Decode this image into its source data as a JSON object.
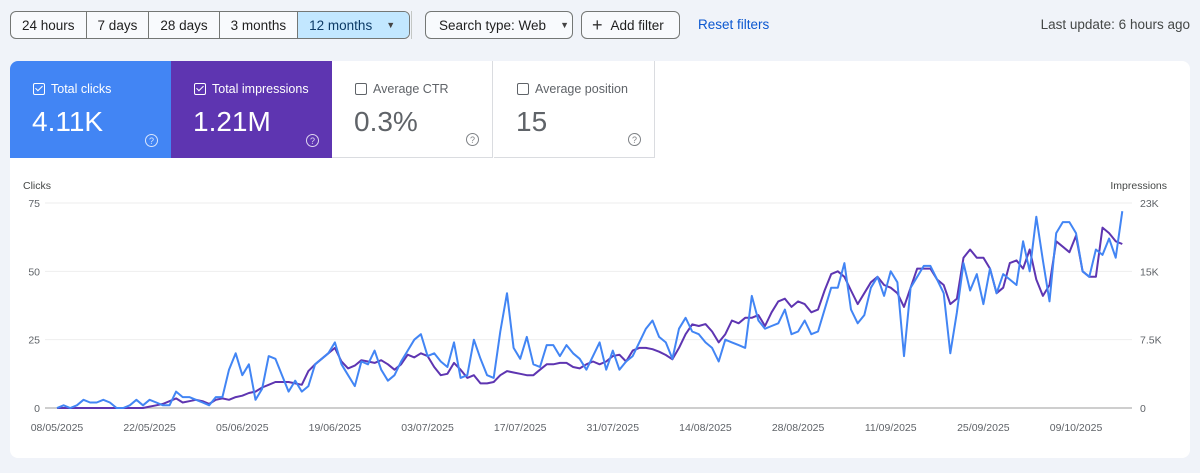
{
  "toolbar": {
    "ranges": [
      "24 hours",
      "7 days",
      "28 days",
      "3 months",
      "12 months"
    ],
    "active_range": "12 months",
    "search_type": "Search type: Web",
    "add_filter": "Add filter",
    "reset_filters": "Reset filters",
    "last_update": "Last update: 6 hours ago",
    "accent_color": "#0b57d0",
    "active_range_bg": "#c2e7ff"
  },
  "metrics": [
    {
      "label": "Total clicks",
      "value": "4.11K",
      "checked": true,
      "color": "#4285f4"
    },
    {
      "label": "Total impressions",
      "value": "1.21M",
      "checked": true,
      "color": "#5e35b1"
    },
    {
      "label": "Average CTR",
      "value": "0.3%",
      "checked": false
    },
    {
      "label": "Average position",
      "value": "15",
      "checked": false
    }
  ],
  "chart_data": {
    "type": "line",
    "left_axis_title": "Clicks",
    "right_axis_title": "Impressions",
    "left_ylim": [
      0,
      75
    ],
    "right_ylim": [
      0,
      22500
    ],
    "left_ticks": [
      "0",
      "25",
      "50",
      "75"
    ],
    "right_ticks": [
      "0",
      "7.5K",
      "15K",
      "23K"
    ],
    "x_tick_labels": [
      "08/05/2025",
      "22/05/2025",
      "05/06/2025",
      "19/06/2025",
      "03/07/2025",
      "17/07/2025",
      "31/07/2025",
      "14/08/2025",
      "28/08/2025",
      "11/09/2025",
      "25/09/2025",
      "09/10/2025"
    ],
    "grid": true,
    "dates": [
      "08/05/2025",
      "09/05/2025",
      "10/05/2025",
      "11/05/2025",
      "12/05/2025",
      "13/05/2025",
      "14/05/2025",
      "15/05/2025",
      "16/05/2025",
      "17/05/2025",
      "18/05/2025",
      "19/05/2025",
      "20/05/2025",
      "21/05/2025",
      "22/05/2025",
      "23/05/2025",
      "24/05/2025",
      "25/05/2025",
      "26/05/2025",
      "27/05/2025",
      "28/05/2025",
      "29/05/2025",
      "30/05/2025",
      "31/05/2025",
      "01/06/2025",
      "02/06/2025",
      "03/06/2025",
      "04/06/2025",
      "05/06/2025",
      "06/06/2025",
      "07/06/2025",
      "08/06/2025",
      "09/06/2025",
      "10/06/2025",
      "11/06/2025",
      "12/06/2025",
      "13/06/2025",
      "14/06/2025",
      "15/06/2025",
      "16/06/2025",
      "17/06/2025",
      "18/06/2025",
      "19/06/2025",
      "20/06/2025",
      "21/06/2025",
      "22/06/2025",
      "23/06/2025",
      "24/06/2025",
      "25/06/2025",
      "26/06/2025",
      "27/06/2025",
      "28/06/2025",
      "29/06/2025",
      "30/06/2025",
      "01/07/2025",
      "02/07/2025",
      "03/07/2025",
      "04/07/2025",
      "05/07/2025",
      "06/07/2025",
      "07/07/2025",
      "08/07/2025",
      "09/07/2025",
      "10/07/2025",
      "11/07/2025",
      "12/07/2025",
      "13/07/2025",
      "14/07/2025",
      "15/07/2025",
      "16/07/2025",
      "17/07/2025",
      "18/07/2025",
      "19/07/2025",
      "20/07/2025",
      "21/07/2025",
      "22/07/2025",
      "23/07/2025",
      "24/07/2025",
      "25/07/2025",
      "26/07/2025",
      "27/07/2025",
      "28/07/2025",
      "29/07/2025",
      "30/07/2025",
      "31/07/2025",
      "01/08/2025",
      "02/08/2025",
      "03/08/2025",
      "04/08/2025",
      "05/08/2025",
      "06/08/2025",
      "07/08/2025",
      "08/08/2025",
      "09/08/2025",
      "10/08/2025",
      "11/08/2025",
      "12/08/2025",
      "13/08/2025",
      "14/08/2025",
      "15/08/2025",
      "16/08/2025",
      "17/08/2025",
      "18/08/2025",
      "19/08/2025",
      "20/08/2025",
      "21/08/2025",
      "22/08/2025",
      "23/08/2025",
      "24/08/2025",
      "25/08/2025",
      "26/08/2025",
      "27/08/2025",
      "28/08/2025",
      "29/08/2025",
      "30/08/2025",
      "31/08/2025",
      "01/09/2025",
      "02/09/2025",
      "03/09/2025",
      "04/09/2025",
      "05/09/2025",
      "06/09/2025",
      "07/09/2025",
      "08/09/2025",
      "09/09/2025",
      "10/09/2025",
      "11/09/2025",
      "12/09/2025",
      "13/09/2025",
      "14/09/2025",
      "15/09/2025",
      "16/09/2025",
      "17/09/2025",
      "18/09/2025",
      "19/09/2025",
      "20/09/2025",
      "21/09/2025",
      "22/09/2025",
      "23/09/2025",
      "24/09/2025",
      "25/09/2025",
      "26/09/2025",
      "27/09/2025",
      "28/09/2025",
      "29/09/2025",
      "30/09/2025",
      "01/10/2025",
      "02/10/2025",
      "03/10/2025",
      "04/10/2025",
      "05/10/2025",
      "06/10/2025",
      "07/10/2025",
      "08/10/2025",
      "09/10/2025",
      "10/10/2025",
      "11/10/2025",
      "12/10/2025",
      "13/10/2025",
      "14/10/2025",
      "15/10/2025",
      "16/10/2025"
    ],
    "series": [
      {
        "name": "Clicks",
        "axis": "left",
        "color": "#4285f4",
        "values": [
          0,
          1,
          0,
          1,
          3,
          2,
          2,
          3,
          2,
          0,
          0,
          1,
          3,
          1,
          3,
          2,
          1,
          1,
          6,
          4,
          4,
          3,
          2,
          1,
          4,
          4,
          14,
          20,
          12,
          16,
          3,
          7,
          19,
          18,
          12,
          6,
          10,
          6,
          8,
          16,
          18,
          20,
          24,
          16,
          12,
          8,
          17,
          16,
          21,
          14,
          10,
          12,
          17,
          21,
          25,
          27,
          19,
          20,
          17,
          15,
          24,
          11,
          12,
          25,
          18,
          12,
          11,
          28,
          42,
          22,
          18,
          26,
          16,
          15,
          23,
          23,
          19,
          23,
          20,
          18,
          14,
          19,
          24,
          14,
          21,
          14,
          17,
          19,
          24,
          29,
          32,
          26,
          24,
          18,
          29,
          33,
          28,
          27,
          24,
          22,
          17,
          25,
          24,
          23,
          22,
          41,
          32,
          29,
          30,
          31,
          36,
          27,
          28,
          32,
          27,
          28,
          36,
          44,
          44,
          53,
          36,
          31,
          34,
          44,
          48,
          41,
          50,
          46,
          19,
          44,
          48,
          52,
          52,
          47,
          42,
          20,
          35,
          53,
          43,
          49,
          38,
          51,
          42,
          49,
          47,
          45,
          61,
          50,
          70,
          54,
          39,
          64,
          68,
          68,
          64,
          50,
          48,
          58,
          56,
          62,
          55,
          72
        ]
      },
      {
        "name": "Impressions",
        "axis": "right",
        "color": "#5e35b1",
        "values": [
          0,
          0,
          0,
          0,
          0,
          0,
          0,
          0,
          0,
          0,
          0,
          0,
          0,
          0,
          150,
          300,
          450,
          750,
          1050,
          600,
          750,
          900,
          750,
          450,
          900,
          1050,
          900,
          1200,
          1350,
          1650,
          1800,
          2250,
          2550,
          2850,
          2850,
          2850,
          2700,
          2550,
          4050,
          4800,
          5400,
          6000,
          6600,
          5100,
          4350,
          4650,
          5250,
          5100,
          4950,
          5250,
          4800,
          4200,
          4800,
          5850,
          5550,
          6000,
          5700,
          4500,
          3600,
          3750,
          4950,
          4200,
          3300,
          3600,
          2700,
          2700,
          2850,
          3600,
          4050,
          3900,
          3750,
          3600,
          3600,
          4200,
          4800,
          4800,
          4950,
          4950,
          4500,
          4350,
          4800,
          5100,
          4800,
          5100,
          5700,
          5850,
          5100,
          6300,
          6600,
          6600,
          6450,
          6180,
          5820,
          5340,
          6600,
          8100,
          9180,
          9000,
          9210,
          8400,
          7200,
          8100,
          9600,
          9300,
          9900,
          9900,
          10200,
          9000,
          10500,
          11700,
          12000,
          11100,
          11700,
          11400,
          10500,
          10800,
          12900,
          14700,
          15000,
          14400,
          12900,
          11400,
          12600,
          13800,
          14400,
          13500,
          13200,
          12600,
          11100,
          13200,
          15300,
          15300,
          15300,
          14100,
          13500,
          11400,
          12000,
          16500,
          17400,
          16500,
          16500,
          15300,
          12600,
          13200,
          15900,
          16200,
          15300,
          17400,
          14100,
          12300,
          13500,
          18300,
          17700,
          17100,
          18900,
          15000,
          14400,
          14400,
          19800,
          19200,
          18300,
          18000
        ]
      }
    ]
  }
}
